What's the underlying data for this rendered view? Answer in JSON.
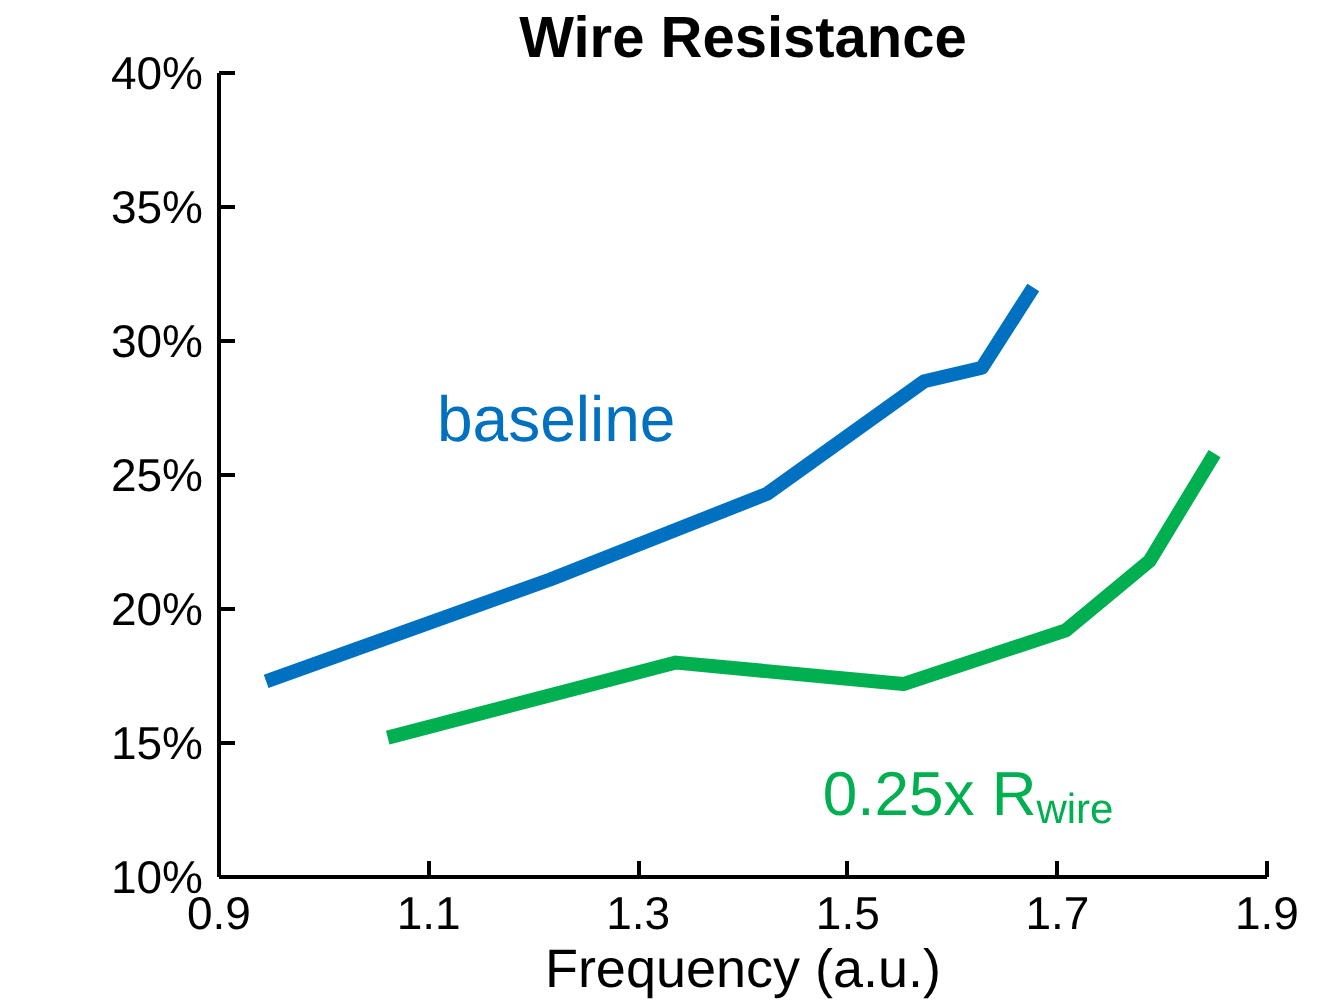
{
  "chart_data": {
    "type": "line",
    "title": "Wire Resistance",
    "xlabel": "Frequency (a.u.)",
    "xlim": [
      0.9,
      1.9
    ],
    "xticks": [
      0.9,
      1.1,
      1.3,
      1.5,
      1.7,
      1.9
    ],
    "ylim": [
      10,
      40
    ],
    "yticks": [
      {
        "value": 10,
        "label": "10%"
      },
      {
        "value": 15,
        "label": "15%"
      },
      {
        "value": 20,
        "label": "20%"
      },
      {
        "value": 25,
        "label": "25%"
      },
      {
        "value": 30,
        "label": "30%"
      },
      {
        "value": 35,
        "label": "35%"
      },
      {
        "value": 40,
        "label": "40%"
      }
    ],
    "grid": false,
    "line_style": "solid",
    "marker": "none",
    "series": [
      {
        "name": "baseline",
        "color": "#0070c0",
        "x": [
          0.945,
          1.216,
          1.423,
          1.573,
          1.628,
          1.677
        ],
        "values": [
          17.3,
          21.1,
          24.3,
          28.5,
          29.0,
          32.0
        ]
      },
      {
        "name": "0.25x R$_{wire}$",
        "color": "#00b050",
        "x": [
          1.061,
          1.336,
          1.553,
          1.708,
          1.788,
          1.85
        ],
        "values": [
          15.2,
          18.0,
          17.2,
          19.2,
          21.8,
          25.8
        ]
      }
    ]
  }
}
